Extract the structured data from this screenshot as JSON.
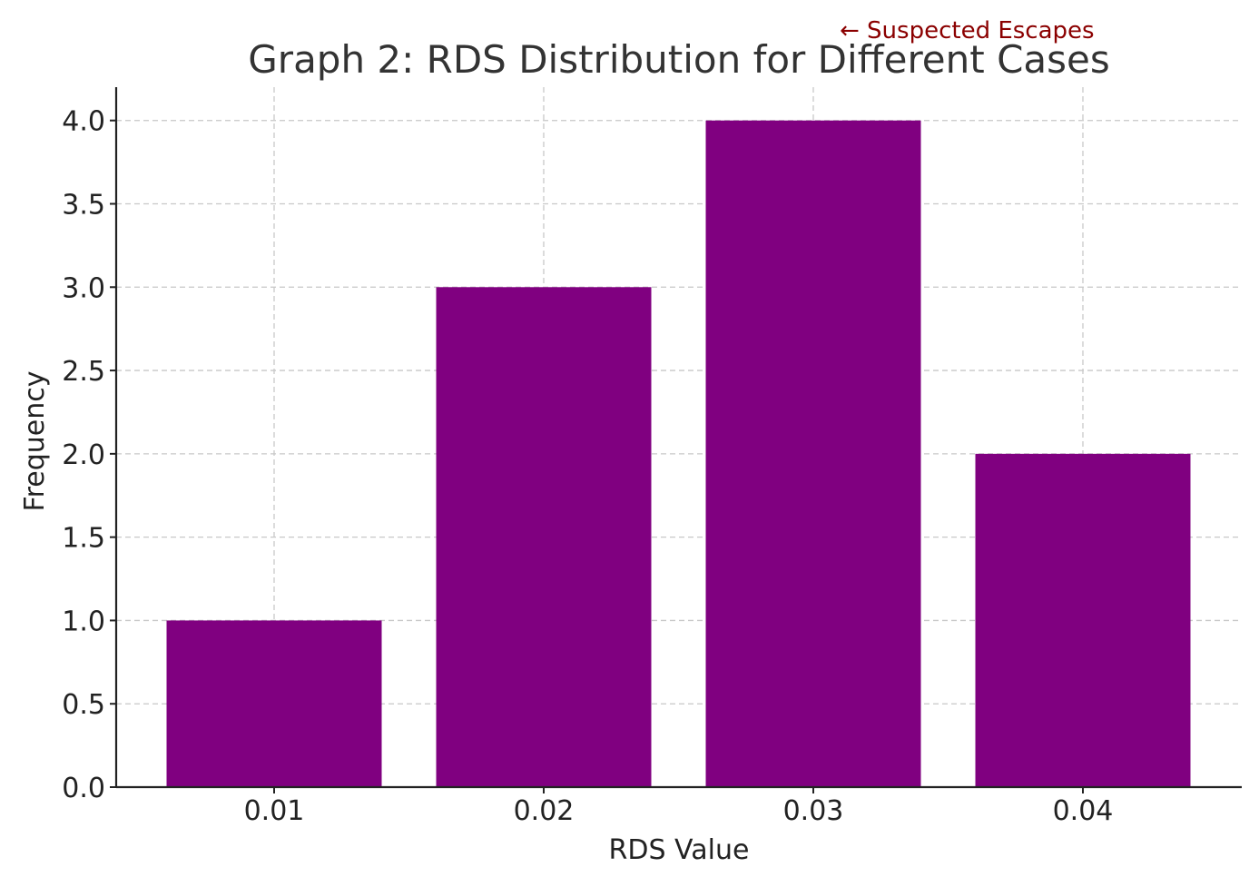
{
  "chart_data": {
    "type": "bar",
    "title": "Graph 2: RDS Distribution for Different Cases",
    "xlabel": "RDS Value",
    "ylabel": "Frequency",
    "categories": [
      "0.01",
      "0.02",
      "0.03",
      "0.04"
    ],
    "values": [
      1,
      3,
      4,
      2
    ],
    "ylim": [
      0,
      4.2
    ],
    "yticks": [
      "0.0",
      "0.5",
      "1.0",
      "1.5",
      "2.0",
      "2.5",
      "3.0",
      "3.5",
      "4.0"
    ],
    "grid": true,
    "bar_color": "#800080",
    "annotation": {
      "text": "← Suspected Escapes",
      "color": "#8b0000"
    }
  }
}
